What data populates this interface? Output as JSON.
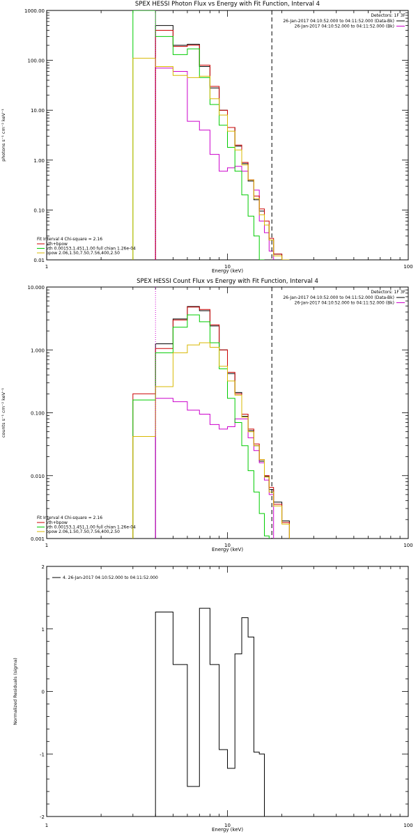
{
  "colors": {
    "data": "#000000",
    "bk": "#cc00cc",
    "total": "#cc0000",
    "vth": "#00cc00",
    "bpow": "#d8b800"
  },
  "chart_data": [
    {
      "type": "line",
      "title": "SPEX HESSI Photon Flux vs Energy with Fit Function, Interval 4",
      "xlabel": "Energy (keV)",
      "ylabel": "photons s⁻¹ cm⁻² keV⁻¹",
      "xscale": "log",
      "yscale": "log",
      "xlim": [
        1,
        100
      ],
      "ylim": [
        0.01,
        1000
      ],
      "xticks": [
        1,
        10,
        100
      ],
      "xtick_labels": [
        "1",
        "10",
        "100"
      ],
      "yticks": [
        0.01,
        0.1,
        1,
        10,
        100,
        1000
      ],
      "ytick_labels": [
        "0.01",
        "0.10",
        "1.00",
        "10.00",
        "100.00",
        "1000.00"
      ],
      "edges": [
        3,
        4,
        5,
        6,
        7,
        8,
        9,
        10,
        11,
        12,
        13,
        14,
        15,
        16,
        17,
        18,
        20,
        22,
        25
      ],
      "series": [
        {
          "name": "data",
          "color": "#000000",
          "values": [
            null,
            500,
            200,
            210,
            75,
            28,
            10,
            4.5,
            1.9,
            0.85,
            0.38,
            0.16,
            0.095,
            0.05,
            0.025,
            0.013,
            0.008,
            null
          ]
        },
        {
          "name": "bk",
          "color": "#cc00cc",
          "values": [
            null,
            70,
            60,
            6,
            4,
            1.3,
            0.6,
            0.7,
            0.75,
            0.6,
            0.4,
            0.25,
            0.06,
            0.035,
            0.015,
            null,
            null,
            null
          ]
        },
        {
          "name": "vth+bpow",
          "color": "#cc0000",
          "values": [
            null,
            400,
            190,
            200,
            80,
            30,
            10,
            4.5,
            2,
            0.9,
            0.4,
            0.19,
            0.105,
            0.06,
            0.027,
            0.013,
            0.0085,
            null
          ]
        },
        {
          "name": "vth",
          "color": "#00cc00",
          "values": [
            1000,
            300,
            130,
            170,
            45,
            13,
            5,
            1.8,
            0.6,
            0.2,
            0.075,
            0.03,
            0.01,
            null,
            null,
            null,
            null,
            null
          ]
        },
        {
          "name": "bpow",
          "color": "#d8b800",
          "values": [
            110,
            75,
            50,
            45,
            48,
            17,
            8,
            3.8,
            1.6,
            0.8,
            0.4,
            0.17,
            0.08,
            0.05,
            0.025,
            0.012,
            0.0075,
            null
          ]
        }
      ],
      "vlines": [
        {
          "x": 4.0,
          "style": "dotted",
          "color": "#cc00cc"
        },
        {
          "x": 17.6,
          "style": "dashed",
          "color": "#000000"
        }
      ],
      "legend_tr": {
        "header": "Detectors: 1F 3F",
        "entries": [
          {
            "text": "26-Jan-2017 04:10:52.000 to 04:11:52.000 (Data-Bk)",
            "color": "#000000"
          },
          {
            "text": "26-Jan-2017 04:10:52.000 to 04:11:52.000 (Bk)",
            "color": "#cc00cc"
          }
        ]
      },
      "legend_bl": {
        "header": "Fit Interval 4   Chi-square = 2.16",
        "entries": [
          {
            "text": "vth+bpow",
            "color": "#cc0000"
          },
          {
            "text": "vth 0.00153,1.451,1.00  full chian 1.26e-04",
            "color": "#00cc00"
          },
          {
            "text": "bpow 2.06,1.50,7.50,7.56,400,2.50",
            "color": "#d8b800"
          }
        ]
      }
    },
    {
      "type": "line",
      "title": "SPEX HESSI Count Flux vs Energy with Fit Function, Interval 4",
      "xlabel": "Energy (keV)",
      "ylabel": "counts s⁻¹ cm⁻² keV⁻¹",
      "xscale": "log",
      "yscale": "log",
      "xlim": [
        1,
        100
      ],
      "ylim": [
        0.001,
        10
      ],
      "xticks": [
        1,
        10,
        100
      ],
      "xtick_labels": [
        "1",
        "10",
        "100"
      ],
      "yticks": [
        0.001,
        0.01,
        0.1,
        1,
        10
      ],
      "ytick_labels": [
        "0.001",
        "0.010",
        "0.100",
        "1.000",
        "10.000"
      ],
      "edges": [
        3,
        4,
        5,
        6,
        7,
        8,
        9,
        10,
        11,
        12,
        13,
        14,
        15,
        16,
        17,
        18,
        20,
        22,
        25
      ],
      "series": [
        {
          "name": "data",
          "color": "#000000",
          "values": [
            null,
            1.25,
            3.1,
            4.9,
            4.2,
            2.4,
            1.0,
            0.42,
            0.21,
            0.088,
            0.052,
            0.03,
            0.017,
            0.0097,
            0.006,
            0.0038,
            0.0019,
            null
          ]
        },
        {
          "name": "bk",
          "color": "#cc00cc",
          "values": [
            null,
            0.17,
            0.15,
            0.11,
            0.095,
            0.065,
            0.055,
            0.06,
            0.08,
            0.08,
            0.04,
            0.025,
            0.016,
            0.0085,
            0.005,
            null,
            null,
            null
          ]
        },
        {
          "name": "vth+bpow",
          "color": "#cc0000",
          "values": [
            0.2,
            1.05,
            3.0,
            4.8,
            4.4,
            2.5,
            1.0,
            0.44,
            0.2,
            0.095,
            0.055,
            0.032,
            0.018,
            0.01,
            0.0065,
            0.0035,
            0.0018,
            null
          ]
        },
        {
          "name": "vth",
          "color": "#00cc00",
          "values": [
            0.16,
            0.9,
            2.3,
            3.6,
            2.8,
            1.3,
            0.5,
            0.17,
            0.07,
            0.03,
            0.012,
            0.0055,
            0.0025,
            0.0011,
            null,
            null,
            null,
            null
          ]
        },
        {
          "name": "bpow",
          "color": "#d8b800",
          "values": [
            0.042,
            0.26,
            0.9,
            1.2,
            1.3,
            1.1,
            0.55,
            0.32,
            0.19,
            0.085,
            0.05,
            0.03,
            0.018,
            0.0095,
            0.0055,
            0.0033,
            0.0017,
            null
          ]
        }
      ],
      "vlines": [
        {
          "x": 4.0,
          "style": "dotted",
          "color": "#cc00cc"
        },
        {
          "x": 17.6,
          "style": "dashed",
          "color": "#000000"
        }
      ],
      "legend_tr": {
        "header": "Detectors: 1F 3F",
        "entries": [
          {
            "text": "26-Jan-2017 04:10:52.000 to 04:11:52.000 (Data-Bk)",
            "color": "#000000"
          },
          {
            "text": "26-Jan-2017 04:10:52.000 to 04:11:52.000 (Bk)",
            "color": "#cc00cc"
          }
        ]
      },
      "legend_bl": {
        "header": "Fit Interval 4   Chi-square = 2.16",
        "entries": [
          {
            "text": "vth+bpow",
            "color": "#cc0000"
          },
          {
            "text": "vth 0.00153,1.451,1.00  full chian 1.26e-04",
            "color": "#00cc00"
          },
          {
            "text": "bpow 2.06,1.50,7.50,7.56,400,2.50",
            "color": "#d8b800"
          }
        ]
      }
    },
    {
      "type": "line",
      "title": "",
      "xlabel": "Energy (keV)",
      "ylabel": "Normalized Residuals (sigma)",
      "xscale": "log",
      "yscale": "linear",
      "xlim": [
        1,
        100
      ],
      "ylim": [
        -2,
        2
      ],
      "xticks": [
        1,
        10,
        100
      ],
      "xtick_labels": [
        "1",
        "10",
        "100"
      ],
      "yticks": [
        -2,
        -1,
        0,
        1,
        2
      ],
      "ytick_labels": [
        "-2",
        "-1",
        "0",
        "1",
        "2"
      ],
      "edges": [
        4,
        5,
        6,
        7,
        8,
        9,
        10,
        11,
        12,
        13,
        14,
        15,
        16,
        18
      ],
      "series": [
        {
          "name": "residuals",
          "color": "#000000",
          "values": [
            1.27,
            0.43,
            -1.52,
            1.33,
            0.43,
            -0.93,
            -1.23,
            0.6,
            1.18,
            0.87,
            -0.97,
            -1.0,
            -2.0
          ]
        }
      ],
      "legend_tl": {
        "entries": [
          {
            "text": "4. 26-Jan-2017 04:10:52.000 to 04:11:52.000",
            "color": "#000000"
          }
        ]
      }
    }
  ]
}
